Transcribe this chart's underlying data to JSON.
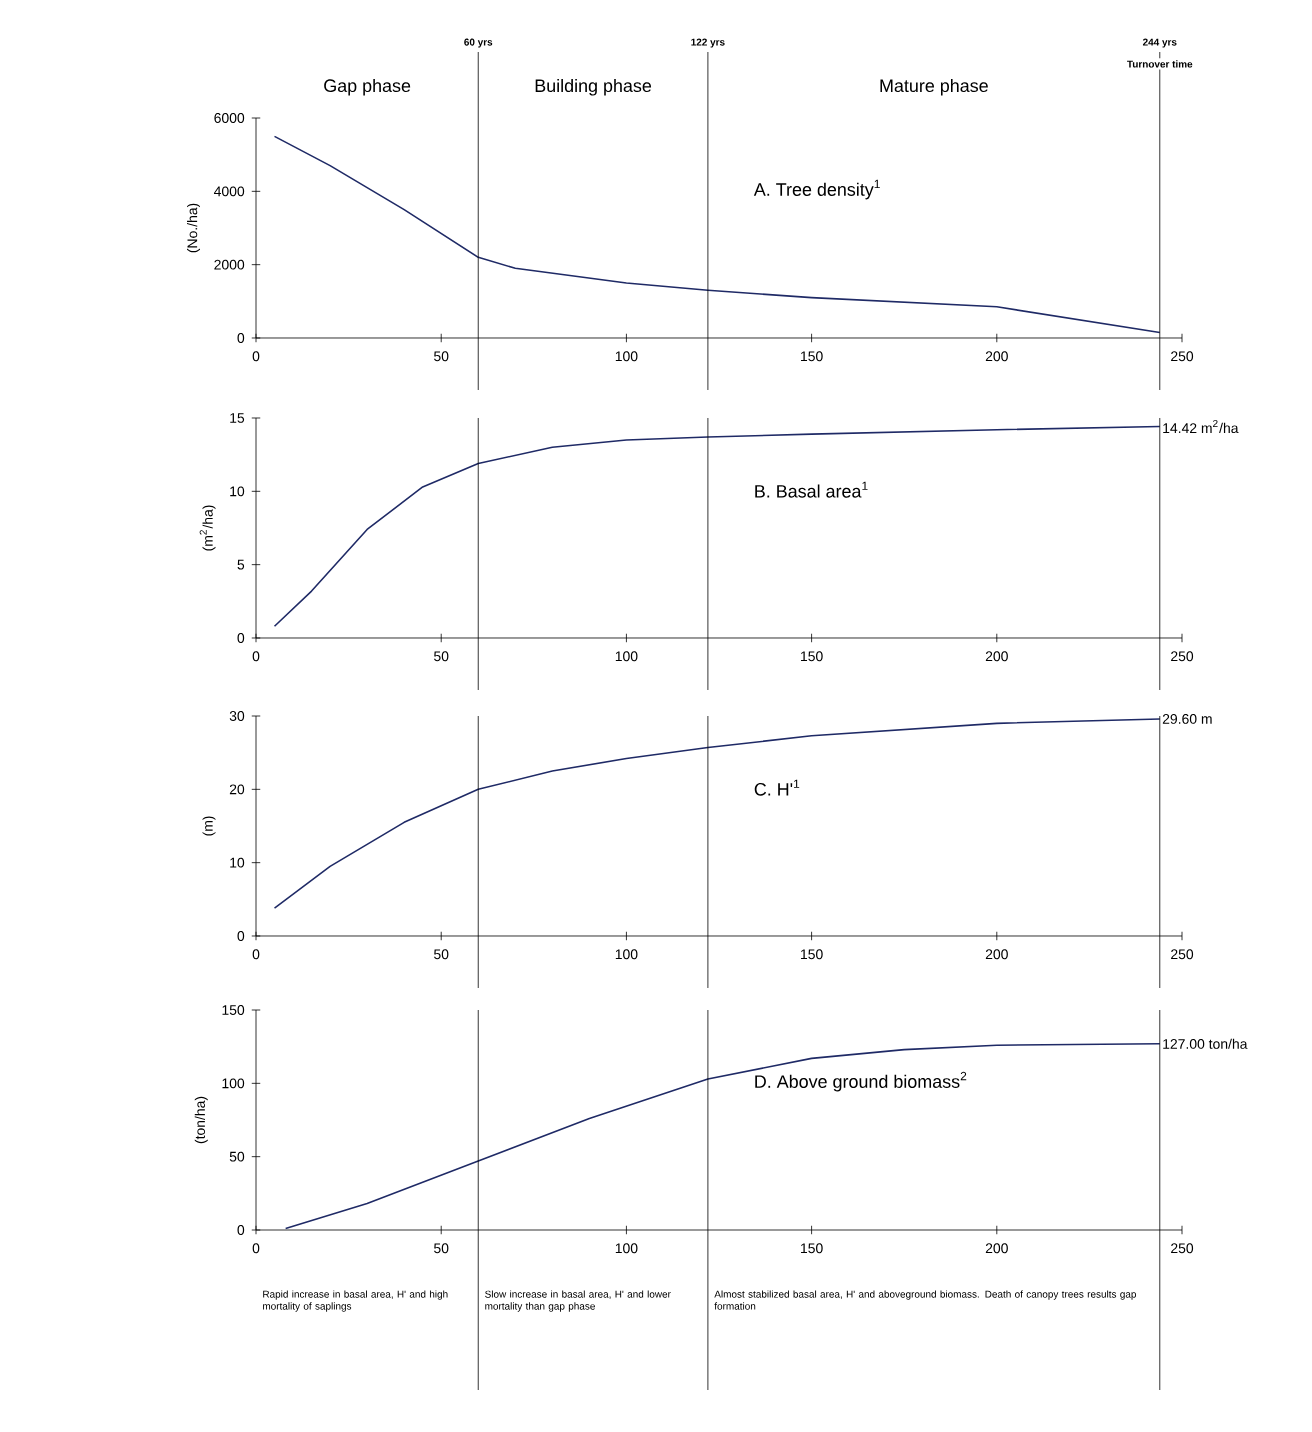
{
  "chart_data": [
    {
      "type": "line",
      "title": "A. Tree density$^{1}$",
      "ylabel": "(No./ha)",
      "xlim": [
        0,
        250
      ],
      "ylim": [
        0,
        6000
      ],
      "xticks": [
        0,
        50,
        100,
        150,
        200,
        250
      ],
      "yticks": [
        0,
        2000,
        4000,
        6000
      ],
      "x": [
        5,
        20,
        40,
        60,
        70,
        100,
        122,
        150,
        200,
        244
      ],
      "series": [
        {
          "color": "#1f2a66",
          "values": [
            5500,
            4700,
            3500,
            2200,
            1900,
            1500,
            1300,
            1100,
            850,
            150
          ]
        }
      ],
      "ref_lines": [
        {
          "axis": "x",
          "value": 60,
          "label": "60 yrs"
        },
        {
          "axis": "x",
          "value": 122,
          "label": "122 yrs"
        },
        {
          "axis": "x",
          "value": 244,
          "label": "244 yrs"
        }
      ],
      "annotations": [
        "Gap phase",
        "Building phase",
        "Mature phase",
        "Turnover time"
      ]
    },
    {
      "type": "line",
      "title": "B. Basal area$^{1}$",
      "ylabel": "(m$^{2}$/ha)",
      "xlim": [
        0,
        250
      ],
      "ylim": [
        0,
        15
      ],
      "xticks": [
        0,
        50,
        100,
        150,
        200,
        250
      ],
      "yticks": [
        0,
        5,
        10,
        15
      ],
      "x": [
        5,
        15,
        30,
        45,
        60,
        80,
        100,
        122,
        150,
        200,
        244
      ],
      "series": [
        {
          "color": "#1f2a66",
          "values": [
            0.8,
            3.2,
            7.4,
            10.3,
            11.9,
            13.0,
            13.5,
            13.7,
            13.9,
            14.2,
            14.42
          ]
        }
      ],
      "ref_lines": [
        {
          "axis": "x",
          "value": 60
        },
        {
          "axis": "x",
          "value": 122
        },
        {
          "axis": "x",
          "value": 244
        }
      ],
      "annotations": [
        "14.42 m$^{2}$/ha"
      ]
    },
    {
      "type": "line",
      "title": "C. H'$^{1}$",
      "ylabel": "(m)",
      "xlim": [
        0,
        250
      ],
      "ylim": [
        0,
        30
      ],
      "xticks": [
        0,
        50,
        100,
        150,
        200,
        250
      ],
      "yticks": [
        0,
        10,
        20,
        30
      ],
      "x": [
        5,
        20,
        40,
        60,
        80,
        100,
        122,
        150,
        200,
        244
      ],
      "series": [
        {
          "color": "#1f2a66",
          "values": [
            3.8,
            9.5,
            15.5,
            20,
            22.5,
            24.2,
            25.7,
            27.3,
            29,
            29.6
          ]
        }
      ],
      "ref_lines": [
        {
          "axis": "x",
          "value": 60
        },
        {
          "axis": "x",
          "value": 122
        },
        {
          "axis": "x",
          "value": 244
        }
      ],
      "annotations": [
        "29.60 m"
      ]
    },
    {
      "type": "line",
      "title": "D. Above ground biomass$^{2}$",
      "ylabel": "(ton/ha)",
      "xlim": [
        0,
        250
      ],
      "ylim": [
        0,
        150
      ],
      "xticks": [
        0,
        50,
        100,
        150,
        200,
        250
      ],
      "yticks": [
        0,
        50,
        100,
        150
      ],
      "x": [
        8,
        30,
        60,
        90,
        122,
        150,
        175,
        200,
        244
      ],
      "series": [
        {
          "color": "#1f2a66",
          "values": [
            1,
            18,
            47,
            76,
            103,
            117,
            123,
            126,
            127
          ]
        }
      ],
      "ref_lines": [
        {
          "axis": "x",
          "value": 60
        },
        {
          "axis": "x",
          "value": 122
        },
        {
          "axis": "x",
          "value": 244
        }
      ],
      "annotations": [
        "Rapid increase in basal area, H' and high mortality of saplings",
        "Slow increase in basal area, H' and lower mortality than gap phase",
        "Almost stabilized basal area, H' and aboveground biomass. Death of canopy trees results gap formation",
        "127.00 ton/ha"
      ]
    }
  ]
}
